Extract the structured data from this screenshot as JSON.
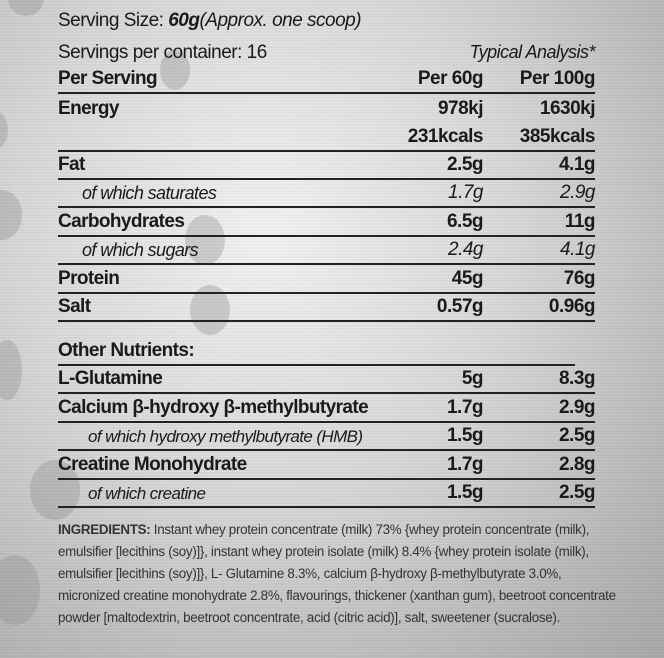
{
  "header": {
    "serving_size_label": "Serving Size: ",
    "serving_size_value": "60g",
    "serving_size_note": "(Approx. one scoop)",
    "servings_per_container": "Servings per container: 16",
    "typical_analysis": "Typical Analysis*",
    "per_serving": "Per Serving",
    "col1": "Per 60g",
    "col2": "Per 100g"
  },
  "nutrients": [
    {
      "label": "Energy",
      "v1": "978kj",
      "v2": "1630kj"
    },
    {
      "label": "",
      "v1": "231kcals",
      "v2": "385kcals"
    },
    {
      "label": "Fat",
      "v1": "2.5g",
      "v2": "4.1g"
    },
    {
      "label": "of which saturates",
      "v1": "1.7g",
      "v2": "2.9g"
    },
    {
      "label": "Carbohydrates",
      "v1": "6.5g",
      "v2": "11g"
    },
    {
      "label": "of which sugars",
      "v1": "2.4g",
      "v2": "4.1g"
    },
    {
      "label": "Protein",
      "v1": "45g",
      "v2": "76g"
    },
    {
      "label": "Salt",
      "v1": "0.57g",
      "v2": "0.96g"
    }
  ],
  "other": {
    "title": "Other Nutrients:",
    "rows": [
      {
        "label": "L-Glutamine",
        "v1": "5g",
        "v2": "8.3g"
      },
      {
        "label": "Calcium β-hydroxy β-methylbutyrate",
        "v1": "1.7g",
        "v2": "2.9g"
      },
      {
        "label": "of which hydroxy methylbutyrate (HMB)",
        "v1": "1.5g",
        "v2": "2.5g"
      },
      {
        "label": "Creatine Monohydrate",
        "v1": "1.7g",
        "v2": "2.8g"
      },
      {
        "label": "of which creatine",
        "v1": "1.5g",
        "v2": "2.5g"
      }
    ]
  },
  "ingredients": {
    "label": "INGREDIENTS:",
    "text": " Instant whey protein concentrate (milk) 73% {whey protein concentrate (milk), emulsifier [lecithins (soy)]}, instant whey protein isolate (milk) 8.4% {whey protein isolate (milk), emulsifier [lecithins (soy)]}, L- Glutamine 8.3%, calcium β-hydroxy β-methylbutyrate 3.0%, micronized creatine monohydrate 2.8%, flavourings, thickener (xanthan gum), beetroot concentrate powder [maltodextrin, beetroot concentrate, acid (citric acid)], salt, sweetener (sucralose)."
  }
}
